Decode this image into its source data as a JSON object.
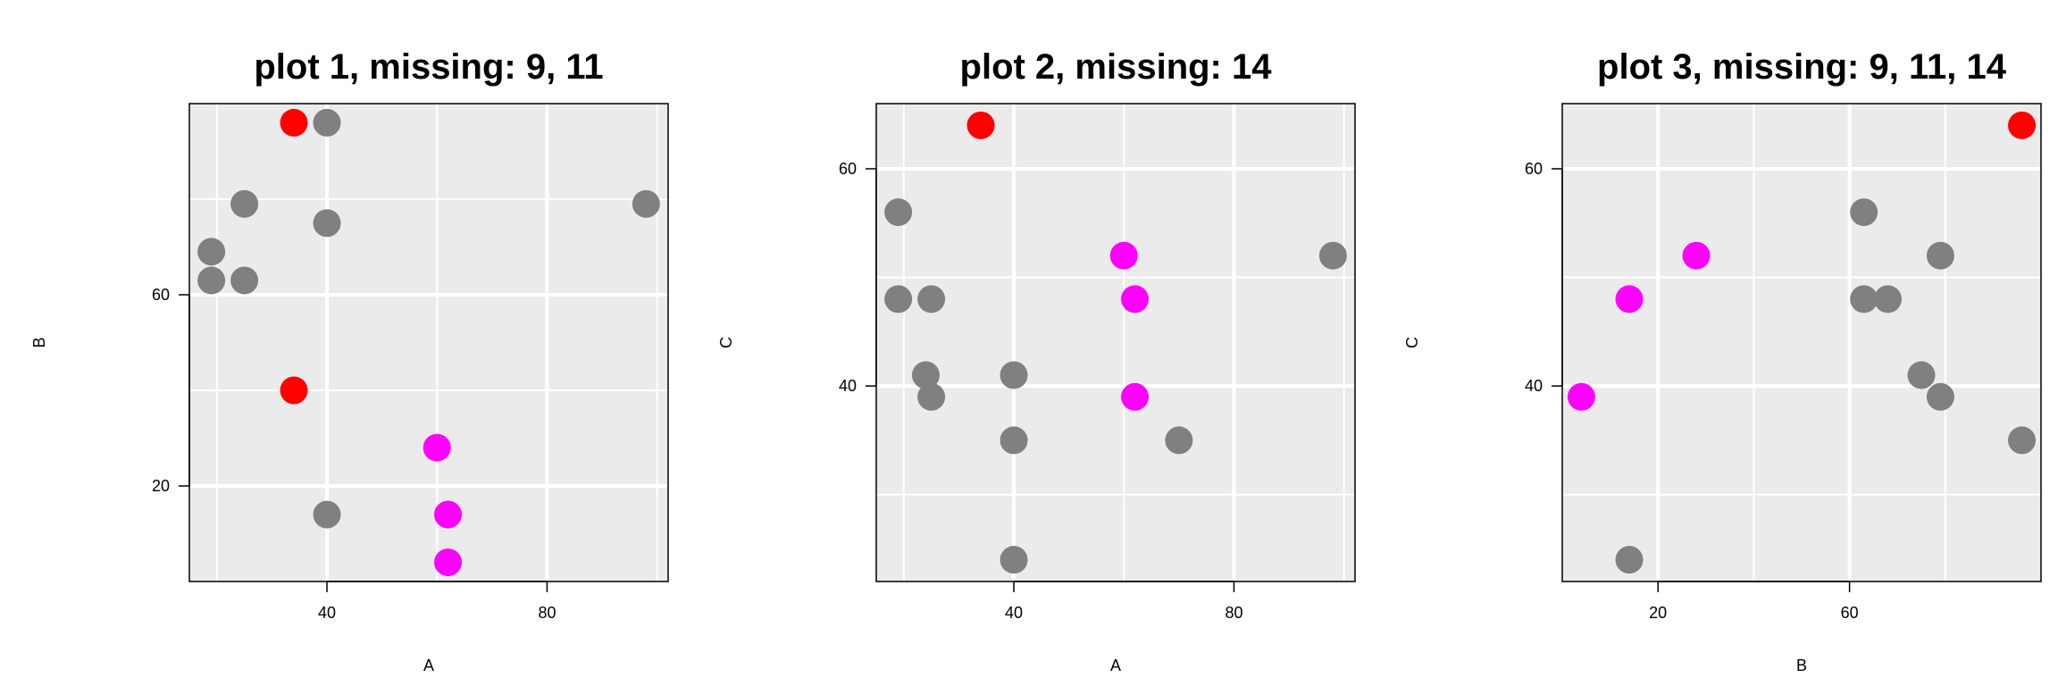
{
  "colors": {
    "background": "#ffffff",
    "panel": "#ebebeb",
    "grid": "#ffffff",
    "observed": "#808080",
    "imputed_x": "#ff0000",
    "imputed_y": "#ff00ff"
  },
  "chart_data": [
    {
      "type": "scatter",
      "title": "plot 1, missing: 9, 11",
      "xlabel": "A",
      "ylabel": "B",
      "xlim": [
        15,
        102
      ],
      "ylim": [
        0,
        100
      ],
      "xticks": [
        40,
        80
      ],
      "yticks": [
        20,
        60
      ],
      "grid": true,
      "points": [
        {
          "x": 34,
          "y": 96,
          "kind": "imputed_x"
        },
        {
          "x": 40,
          "y": 96,
          "kind": "observed"
        },
        {
          "x": 25,
          "y": 79,
          "kind": "observed"
        },
        {
          "x": 40,
          "y": 75,
          "kind": "observed"
        },
        {
          "x": 19,
          "y": 69,
          "kind": "observed"
        },
        {
          "x": 19,
          "y": 63,
          "kind": "observed"
        },
        {
          "x": 25,
          "y": 63,
          "kind": "observed"
        },
        {
          "x": 98,
          "y": 79,
          "kind": "observed"
        },
        {
          "x": 34,
          "y": 40,
          "kind": "imputed_x"
        },
        {
          "x": 60,
          "y": 28,
          "kind": "imputed_y"
        },
        {
          "x": 40,
          "y": 14,
          "kind": "observed"
        },
        {
          "x": 62,
          "y": 14,
          "kind": "imputed_y"
        },
        {
          "x": 62,
          "y": 4,
          "kind": "imputed_y"
        }
      ]
    },
    {
      "type": "scatter",
      "title": "plot 2, missing: 14",
      "xlabel": "A",
      "ylabel": "C",
      "xlim": [
        15,
        102
      ],
      "ylim": [
        22,
        66
      ],
      "xticks": [
        40,
        80
      ],
      "yticks": [
        40,
        60
      ],
      "grid": true,
      "points": [
        {
          "x": 34,
          "y": 64,
          "kind": "imputed_x"
        },
        {
          "x": 19,
          "y": 56,
          "kind": "observed"
        },
        {
          "x": 19,
          "y": 48,
          "kind": "observed"
        },
        {
          "x": 25,
          "y": 48,
          "kind": "observed"
        },
        {
          "x": 24,
          "y": 41,
          "kind": "observed"
        },
        {
          "x": 25,
          "y": 39,
          "kind": "observed"
        },
        {
          "x": 40,
          "y": 41,
          "kind": "observed"
        },
        {
          "x": 40,
          "y": 35,
          "kind": "observed"
        },
        {
          "x": 40,
          "y": 24,
          "kind": "observed"
        },
        {
          "x": 70,
          "y": 35,
          "kind": "observed"
        },
        {
          "x": 98,
          "y": 52,
          "kind": "observed"
        },
        {
          "x": 60,
          "y": 52,
          "kind": "imputed_y"
        },
        {
          "x": 62,
          "y": 48,
          "kind": "imputed_y"
        },
        {
          "x": 62,
          "y": 39,
          "kind": "imputed_y"
        }
      ]
    },
    {
      "type": "scatter",
      "title": "plot 3, missing: 9, 11, 14",
      "xlabel": "B",
      "ylabel": "C",
      "xlim": [
        0,
        100
      ],
      "ylim": [
        22,
        66
      ],
      "xticks": [
        20,
        60
      ],
      "yticks": [
        40,
        60
      ],
      "grid": true,
      "points": [
        {
          "x": 96,
          "y": 64,
          "kind": "imputed_x"
        },
        {
          "x": 63,
          "y": 56,
          "kind": "observed"
        },
        {
          "x": 79,
          "y": 52,
          "kind": "observed"
        },
        {
          "x": 63,
          "y": 48,
          "kind": "observed"
        },
        {
          "x": 68,
          "y": 48,
          "kind": "observed"
        },
        {
          "x": 75,
          "y": 41,
          "kind": "observed"
        },
        {
          "x": 79,
          "y": 39,
          "kind": "observed"
        },
        {
          "x": 96,
          "y": 35,
          "kind": "observed"
        },
        {
          "x": 14,
          "y": 24,
          "kind": "observed"
        },
        {
          "x": 28,
          "y": 52,
          "kind": "imputed_y"
        },
        {
          "x": 14,
          "y": 48,
          "kind": "imputed_y"
        },
        {
          "x": 4,
          "y": 39,
          "kind": "imputed_y"
        }
      ]
    }
  ]
}
